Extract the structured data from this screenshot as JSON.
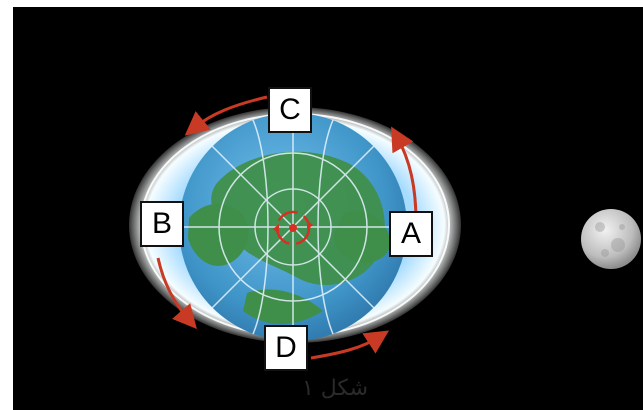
{
  "diagram": {
    "labels": {
      "a": "A",
      "b": "B",
      "c": "C",
      "d": "D"
    },
    "caption": "شکل ۱",
    "colors": {
      "background": "#000000",
      "ocean": "#3f95c8",
      "land": "#3f8f4b",
      "glow": "#dff3ff",
      "arrows": "#c83a24",
      "moon": "#d9d9d9"
    }
  }
}
